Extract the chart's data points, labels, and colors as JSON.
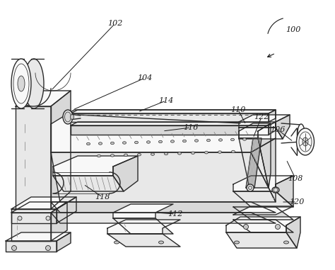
{
  "background_color": "#ffffff",
  "line_color": "#2a2a2a",
  "label_color": "#1a1a1a",
  "figsize": [
    4.74,
    3.81
  ],
  "dpi": 100,
  "lw_main": 1.0,
  "lw_thin": 0.55,
  "lw_thick": 1.3
}
